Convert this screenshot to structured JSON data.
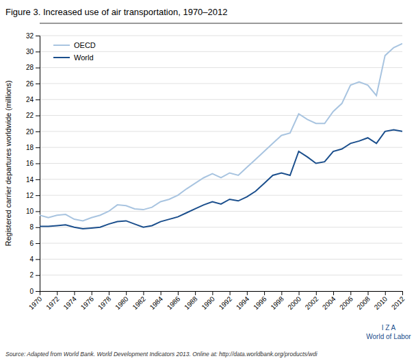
{
  "chart_data": {
    "type": "line",
    "title": "Figure 3. Increased use of air transportation, 1970–2012",
    "y_label": "Registered carrier departures worldwide (millions)",
    "annotations": [
      "Source: Adapted from World Bank. World Development Indicators 2013. Online at: http://data.worldbank.org/products/wdi",
      "I  Z  A\nWorld of Labor"
    ],
    "x": [
      1970,
      1971,
      1972,
      1973,
      1974,
      1975,
      1976,
      1977,
      1978,
      1979,
      1980,
      1981,
      1982,
      1983,
      1984,
      1985,
      1986,
      1987,
      1988,
      1989,
      1990,
      1991,
      1992,
      1993,
      1994,
      1995,
      1996,
      1997,
      1998,
      1999,
      2000,
      2001,
      2002,
      2003,
      2004,
      2005,
      2006,
      2007,
      2008,
      2009,
      2010,
      2011,
      2012
    ],
    "series": [
      {
        "name": "OECD",
        "color": "#a8c4e0",
        "values": [
          9.5,
          9.2,
          9.5,
          9.6,
          9.0,
          8.8,
          9.2,
          9.5,
          10.0,
          10.8,
          10.7,
          10.3,
          10.2,
          10.5,
          11.2,
          11.5,
          12.0,
          12.8,
          13.5,
          14.2,
          14.7,
          14.2,
          14.8,
          14.5,
          15.5,
          16.5,
          17.5,
          18.5,
          19.5,
          19.8,
          22.2,
          21.5,
          21.0,
          21.0,
          22.5,
          23.5,
          25.8,
          26.2,
          25.8,
          24.5,
          29.5,
          30.5,
          31.0
        ]
      },
      {
        "name": "World",
        "color": "#1a4e8c",
        "values": [
          8.1,
          8.1,
          8.2,
          8.3,
          8.0,
          7.8,
          7.9,
          8.0,
          8.4,
          8.7,
          8.8,
          8.4,
          8.0,
          8.2,
          8.7,
          9.0,
          9.3,
          9.8,
          10.3,
          10.8,
          11.2,
          10.9,
          11.5,
          11.3,
          11.8,
          12.5,
          13.5,
          14.5,
          14.8,
          14.5,
          17.5,
          16.8,
          16.0,
          16.2,
          17.5,
          17.8,
          18.5,
          18.8,
          19.2,
          18.5,
          20.0,
          20.2,
          20.0
        ]
      }
    ],
    "xlim": [
      1970,
      2012
    ],
    "xticks": [
      1970,
      1972,
      1974,
      1976,
      1978,
      1980,
      1982,
      1984,
      1986,
      1988,
      1990,
      1992,
      1994,
      1996,
      1998,
      2000,
      2002,
      2004,
      2006,
      2008,
      2010,
      2012
    ],
    "ylim": [
      0,
      32
    ],
    "yticks": [
      0,
      2,
      4,
      6,
      8,
      10,
      12,
      14,
      16,
      18,
      20,
      22,
      24,
      26,
      28,
      30,
      32
    ],
    "grid": true,
    "legend": "upper left"
  }
}
